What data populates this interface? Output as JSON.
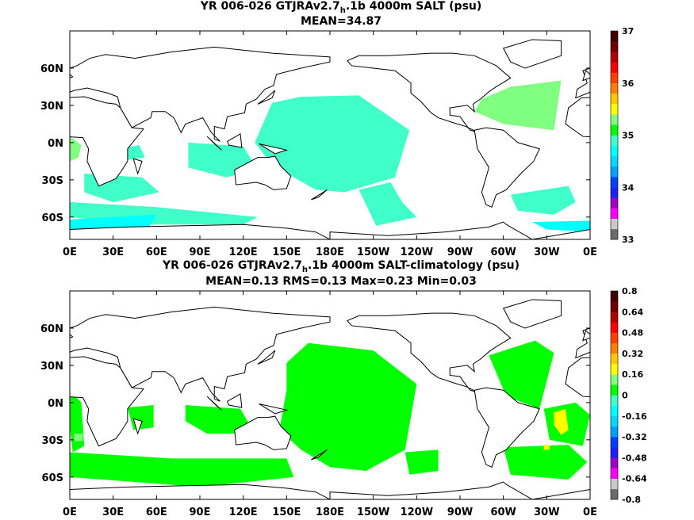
{
  "chart_data": [
    {
      "type": "heatmap",
      "title_prefix": "YR 006-026 GTJRAv2.7",
      "title_sub": "h",
      "title_suffix": ".1b 4000m SALT (psu)",
      "subtitle": "MEAN=34.87",
      "x_ticks": [
        "0E",
        "30E",
        "60E",
        "90E",
        "120E",
        "150E",
        "180E",
        "150W",
        "120W",
        "90W",
        "60W",
        "30W",
        "0E"
      ],
      "y_ticks": [
        "60N",
        "30N",
        "0N",
        "30S",
        "60S"
      ],
      "y_tick_values": [
        60,
        30,
        0,
        -30,
        -60
      ],
      "xlim": [
        0,
        360
      ],
      "ylim": [
        -78,
        90
      ],
      "colorbar_labels": [
        "37",
        "36",
        "35",
        "34",
        "33"
      ],
      "colorbar_min": 33,
      "colorbar_max": 37,
      "colors": [
        "#6b6b6b",
        "#c8c8c8",
        "#ff00ff",
        "#a000c8",
        "#2020ff",
        "#0040ff",
        "#00a0ff",
        "#00d8ff",
        "#00ffff",
        "#40ffc8",
        "#00ff00",
        "#80ff80",
        "#ffff00",
        "#ffc800",
        "#ff8000",
        "#ff4000",
        "#ff0000",
        "#b00000",
        "#700000",
        "#400000"
      ],
      "regions": [
        {
          "color": "#40ffc8",
          "lon": [
            140,
            160,
            200,
            235,
            225,
            190,
            170,
            140,
            128
          ],
          "lat": [
            32,
            37,
            38,
            10,
            -28,
            -40,
            -38,
            -18,
            0
          ]
        },
        {
          "color": "#40ffc8",
          "lon": [
            200,
            222,
            230,
            240,
            212
          ],
          "lat": [
            -38,
            -32,
            -48,
            -60,
            -67
          ]
        },
        {
          "color": "#40ffc8",
          "lon": [
            82,
            120,
            130,
            108,
            82
          ],
          "lat": [
            0,
            -3,
            -22,
            -28,
            -20
          ]
        },
        {
          "color": "#40ffc8",
          "lon": [
            0,
            60,
            130,
            120,
            45,
            0
          ],
          "lat": [
            -48,
            -52,
            -60,
            -66,
            -66,
            -60
          ]
        },
        {
          "color": "#40ffc8",
          "lon": [
            305,
            345,
            350,
            335,
            310
          ],
          "lat": [
            -42,
            -35,
            -48,
            -58,
            -55
          ]
        },
        {
          "color": "#40ffc8",
          "lon": [
            10,
            50,
            62,
            30,
            10
          ],
          "lat": [
            -25,
            -28,
            -40,
            -48,
            -40
          ]
        },
        {
          "color": "#40ffc8",
          "lon": [
            38,
            48,
            52,
            40
          ],
          "lat": [
            -4,
            -2,
            -12,
            -14
          ]
        },
        {
          "color": "#80ff80",
          "lon": [
            285,
            305,
            340,
            335,
            300,
            280
          ],
          "lat": [
            35,
            45,
            50,
            10,
            15,
            25
          ]
        },
        {
          "color": "#80ff80",
          "lon": [
            0,
            8,
            6,
            0
          ],
          "lat": [
            5,
            -2,
            -12,
            -15
          ]
        },
        {
          "color": "#00ffff",
          "lon": [
            0,
            60,
            55,
            0
          ],
          "lat": [
            -62,
            -58,
            -68,
            -70
          ]
        },
        {
          "color": "#00ffff",
          "lon": [
            320,
            360,
            360,
            330
          ],
          "lat": [
            -64,
            -63,
            -72,
            -70
          ]
        }
      ]
    },
    {
      "type": "heatmap",
      "title_prefix": "YR 006-026 GTJRAv2.7",
      "title_sub": "h",
      "title_suffix": ".1b 4000m SALT-climatology (psu)",
      "subtitle": "MEAN=0.13   RMS=0.13   Max=0.23   Min=0.03",
      "x_ticks": [
        "0E",
        "30E",
        "60E",
        "90E",
        "120E",
        "150E",
        "180E",
        "150W",
        "120W",
        "90W",
        "60W",
        "30W",
        "0E"
      ],
      "y_ticks": [
        "60N",
        "30N",
        "0N",
        "30S",
        "60S"
      ],
      "y_tick_values": [
        60,
        30,
        0,
        -30,
        -60
      ],
      "xlim": [
        0,
        360
      ],
      "ylim": [
        -78,
        90
      ],
      "colorbar_labels": [
        "0.8",
        "0.64",
        "0.48",
        "0.32",
        "0.16",
        "0",
        "-0.16",
        "-0.32",
        "-0.48",
        "-0.64",
        "-0.8"
      ],
      "colorbar_min": -0.8,
      "colorbar_max": 0.8,
      "colors": [
        "#6b6b6b",
        "#c8c8c8",
        "#ff00ff",
        "#a000c8",
        "#2020ff",
        "#0040ff",
        "#00a0ff",
        "#00d8ff",
        "#00ffff",
        "#40ffc8",
        "#00ff00",
        "#80ff80",
        "#ffff00",
        "#ffc800",
        "#ff8000",
        "#ff4000",
        "#ff0000",
        "#b00000",
        "#700000",
        "#400000"
      ],
      "regions": [
        {
          "color": "#00ff00",
          "lon": [
            150,
            165,
            210,
            240,
            232,
            205,
            180,
            160,
            145,
            150
          ],
          "lat": [
            32,
            48,
            42,
            15,
            -38,
            -55,
            -52,
            -38,
            -22,
            10
          ]
        },
        {
          "color": "#00ff00",
          "lon": [
            0,
            70,
            150,
            155,
            90,
            0
          ],
          "lat": [
            -40,
            -45,
            -45,
            -60,
            -68,
            -60
          ]
        },
        {
          "color": "#00ff00",
          "lon": [
            80,
            118,
            128,
            95,
            80
          ],
          "lat": [
            -2,
            -5,
            -25,
            -25,
            -15
          ]
        },
        {
          "color": "#00ff00",
          "lon": [
            300,
            345,
            358,
            345,
            305
          ],
          "lat": [
            -36,
            -34,
            -48,
            -62,
            -58
          ]
        },
        {
          "color": "#00ff00",
          "lon": [
            290,
            322,
            335,
            325,
            302
          ],
          "lat": [
            38,
            50,
            40,
            -5,
            5
          ]
        },
        {
          "color": "#00ff00",
          "lon": [
            328,
            350,
            360,
            355,
            332
          ],
          "lat": [
            -5,
            0,
            -10,
            -35,
            -30
          ]
        },
        {
          "color": "#00ff00",
          "lon": [
            0,
            8,
            10,
            2,
            0
          ],
          "lat": [
            10,
            0,
            -35,
            -40,
            -20
          ]
        },
        {
          "color": "#00ff00",
          "lon": [
            40,
            58,
            58,
            44
          ],
          "lat": [
            -4,
            -2,
            -20,
            -22
          ]
        },
        {
          "color": "#00ff00",
          "lon": [
            232,
            255,
            255,
            235
          ],
          "lat": [
            -40,
            -38,
            -55,
            -58
          ]
        },
        {
          "color": "#ffff00",
          "lon": [
            335,
            343,
            345,
            340,
            335
          ],
          "lat": [
            -8,
            -5,
            -22,
            -26,
            -18
          ]
        },
        {
          "color": "#ffff00",
          "lon": [
            328,
            332,
            332,
            328
          ],
          "lat": [
            -34,
            -34,
            -38,
            -38
          ]
        },
        {
          "color": "#80ff80",
          "lon": [
            3,
            9,
            9,
            3
          ],
          "lat": [
            -25,
            -25,
            -31,
            -31
          ]
        }
      ]
    }
  ]
}
